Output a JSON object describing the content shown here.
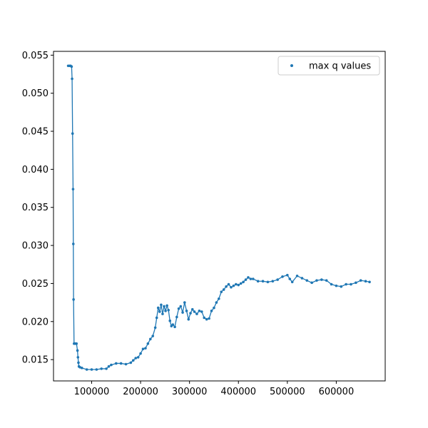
{
  "chart_data": {
    "type": "scatter",
    "title": "",
    "xlabel": "",
    "ylabel": "",
    "xlim": [
      22000,
      700000
    ],
    "ylim": [
      0.0122,
      0.0555
    ],
    "xticks": [
      100000,
      200000,
      300000,
      400000,
      500000,
      600000
    ],
    "yticks": [
      0.015,
      0.02,
      0.025,
      0.03,
      0.035,
      0.04,
      0.045,
      0.05,
      0.055
    ],
    "xtick_labels": [
      "100000",
      "200000",
      "300000",
      "400000",
      "500000",
      "600000"
    ],
    "ytick_labels": [
      "0.015",
      "0.020",
      "0.025",
      "0.030",
      "0.035",
      "0.040",
      "0.045",
      "0.050",
      "0.055"
    ],
    "grid": false,
    "legend": {
      "position": "top-right",
      "entries": [
        "max q values"
      ]
    },
    "series": [
      {
        "name": "max q values",
        "color": "#1f77b4",
        "marker": "dot",
        "connected": true,
        "x": [
          52000,
          55000,
          57000,
          59000,
          60000,
          61000,
          62000,
          62500,
          63000,
          64000,
          65000,
          67000,
          69000,
          71000,
          72000,
          73000,
          74000,
          76000,
          80000,
          90000,
          100000,
          110000,
          120000,
          130000,
          135000,
          140000,
          150000,
          160000,
          170000,
          180000,
          185000,
          190000,
          195000,
          200000,
          205000,
          210000,
          215000,
          220000,
          225000,
          230000,
          233000,
          236000,
          239000,
          242000,
          245000,
          248000,
          251000,
          254000,
          257000,
          260000,
          263000,
          266000,
          270000,
          274000,
          278000,
          282000,
          286000,
          290000,
          294000,
          298000,
          302000,
          306000,
          310000,
          315000,
          320000,
          325000,
          330000,
          335000,
          340000,
          345000,
          350000,
          355000,
          360000,
          365000,
          370000,
          375000,
          380000,
          385000,
          390000,
          395000,
          400000,
          405000,
          410000,
          415000,
          420000,
          425000,
          430000,
          440000,
          450000,
          460000,
          470000,
          480000,
          490000,
          500000,
          505000,
          510000,
          520000,
          530000,
          540000,
          550000,
          560000,
          570000,
          580000,
          590000,
          600000,
          610000,
          620000,
          630000,
          640000,
          650000,
          660000,
          668000
        ],
        "y": [
          0.0536,
          0.0536,
          0.0536,
          0.0535,
          0.0519,
          0.0447,
          0.0374,
          0.0302,
          0.0229,
          0.0171,
          0.0171,
          0.0171,
          0.0171,
          0.0162,
          0.0153,
          0.0146,
          0.0141,
          0.014,
          0.0139,
          0.0137,
          0.0137,
          0.0137,
          0.0138,
          0.0138,
          0.0141,
          0.0143,
          0.0145,
          0.0145,
          0.0144,
          0.0146,
          0.0149,
          0.0152,
          0.0153,
          0.0158,
          0.0164,
          0.0165,
          0.0171,
          0.0177,
          0.0181,
          0.0192,
          0.0205,
          0.0218,
          0.0213,
          0.0222,
          0.021,
          0.022,
          0.0214,
          0.0221,
          0.0215,
          0.0201,
          0.0194,
          0.0196,
          0.0193,
          0.0206,
          0.0217,
          0.022,
          0.0212,
          0.0225,
          0.0214,
          0.0203,
          0.0211,
          0.0216,
          0.0213,
          0.021,
          0.0214,
          0.0213,
          0.0205,
          0.0203,
          0.0204,
          0.0214,
          0.0218,
          0.0225,
          0.023,
          0.0239,
          0.0242,
          0.0246,
          0.0249,
          0.0245,
          0.0247,
          0.0249,
          0.0248,
          0.025,
          0.0252,
          0.0255,
          0.0258,
          0.0256,
          0.0256,
          0.0253,
          0.0253,
          0.0252,
          0.0253,
          0.0255,
          0.0259,
          0.0261,
          0.0256,
          0.0252,
          0.026,
          0.0257,
          0.0254,
          0.0251,
          0.0254,
          0.0255,
          0.0254,
          0.0249,
          0.0247,
          0.0246,
          0.0249,
          0.0249,
          0.0251,
          0.0254,
          0.0253,
          0.0252
        ]
      }
    ]
  }
}
